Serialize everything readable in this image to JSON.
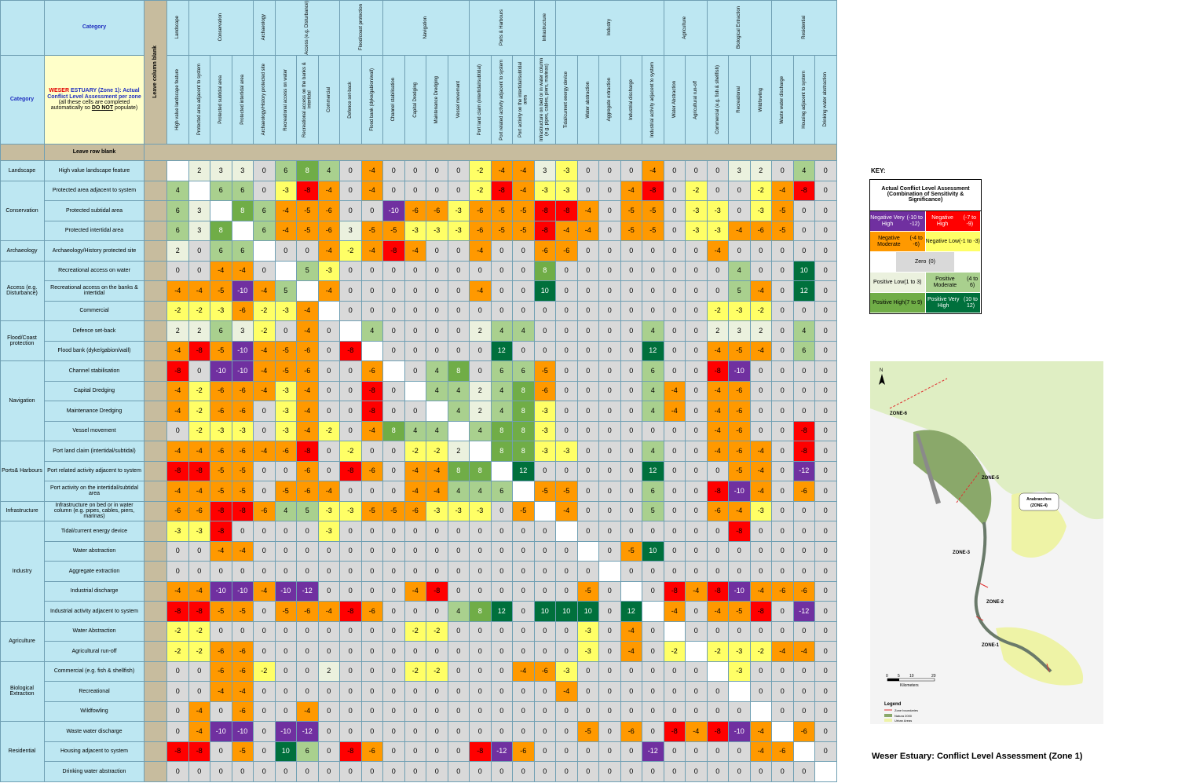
{
  "header": {
    "category_top": "Category",
    "category_side": "Category",
    "leave_column_blank": "Leave column blank",
    "leave_row_blank": "Leave row blank",
    "note_estuary_red": "WESER",
    "note_title_rest": " ESTUARY (Zone 1): Actual Conflict Level Assessment per zone",
    "note_line2": "(all these cells are completed automatically so ",
    "note_do_not": "DO NOT",
    "note_line2_end": " populate)"
  },
  "column_groups": [
    {
      "name": "Landscape",
      "span": 1
    },
    {
      "name": "Conservation",
      "span": 3
    },
    {
      "name": "Archaeology",
      "span": 1
    },
    {
      "name": "Access (e.g. Disturbance)",
      "span": 3
    },
    {
      "name": "Flood/coast protection",
      "span": 2
    },
    {
      "name": "Navigation",
      "span": 4
    },
    {
      "name": "Ports & Harbours",
      "span": 3
    },
    {
      "name": "Infrastructure",
      "span": 1
    },
    {
      "name": "Industry",
      "span": 5
    },
    {
      "name": "Agriculture",
      "span": 2
    },
    {
      "name": "Biological Extraction",
      "span": 3
    },
    {
      "name": "Residential",
      "span": 3
    }
  ],
  "activities": [
    "High value landscape feature",
    "Protected area adjacent to system",
    "Protected subtidal area",
    "Protected intertidal area",
    "Archaeology/History protected site",
    "Recreational access on water",
    "Recreational access on the banks & intertidal",
    "Commercial",
    "Defence set-back",
    "Flood bank (dyke/gabion/wall)",
    "Channel stabilisation",
    "Capital Dredging",
    "Maintenance Dredging",
    "Vessel movement",
    "Port land claim (intertidal/subtidal)",
    "Port related activity adjacent to system",
    "Port activity on the intertidal/subtidal area",
    "Infrastructure on bed or in water column (e.g. pipes, cables, piers, marinas)",
    "Tidal/current energy device",
    "Water abstraction",
    "Aggregate extraction",
    "Industrial discharge",
    "Industrial activity adjacent to system",
    "Water Abstraction",
    "Agricultural run-off",
    "Commercial (e.g. fish & shellfish)",
    "Recreational",
    "Wildfowling",
    "Waste water discharge",
    "Housing adjacent to system",
    "Drinking water abstraction"
  ],
  "row_groups": [
    {
      "name": "Landscape",
      "span": 1
    },
    {
      "name": "Conservation",
      "span": 3
    },
    {
      "name": "Archaeology",
      "span": 1
    },
    {
      "name": "Access (e.g. Disturbance)",
      "span": 3
    },
    {
      "name": "Flood/Coast protection",
      "span": 2
    },
    {
      "name": "Navigation",
      "span": 4
    },
    {
      "name": "Ports& Harbours",
      "span": 3
    },
    {
      "name": "Infrastructure",
      "span": 1
    },
    {
      "name": "Industry",
      "span": 5
    },
    {
      "name": "Agriculture",
      "span": 2
    },
    {
      "name": "Biological Extraction",
      "span": 3
    },
    {
      "name": "Residential",
      "span": 3
    }
  ],
  "chart_data": {
    "type": "heatmap",
    "title": "Weser Estuary:  Conflict Level Assessment (Zone 1)",
    "rows": [
      [
        null,
        2,
        3,
        3,
        0,
        6,
        8,
        4,
        0,
        -4,
        0,
        0,
        0,
        0,
        -2,
        -4,
        -4,
        3,
        -3,
        0,
        0,
        0,
        -4,
        0,
        0,
        0,
        3,
        2,
        0,
        4,
        0
      ],
      [
        4,
        null,
        6,
        6,
        0,
        -3,
        -8,
        -4,
        0,
        -4,
        0,
        0,
        0,
        0,
        -2,
        -8,
        -4,
        -3,
        -3,
        0,
        0,
        -4,
        -8,
        0,
        -2,
        0,
        0,
        -2,
        -4,
        -8,
        0
      ],
      [
        6,
        3,
        null,
        8,
        6,
        -4,
        -5,
        -6,
        0,
        0,
        -10,
        -6,
        -6,
        -3,
        -6,
        -5,
        -5,
        -8,
        -8,
        -4,
        0,
        -5,
        -5,
        0,
        -3,
        -3,
        0,
        -3,
        -5,
        0,
        0
      ],
      [
        6,
        3,
        8,
        null,
        6,
        -4,
        -5,
        -6,
        3,
        -5,
        -5,
        -3,
        -3,
        -3,
        -6,
        -5,
        -5,
        -8,
        -4,
        -4,
        0,
        -5,
        -5,
        0,
        -3,
        -3,
        -4,
        -6,
        -5,
        0,
        0
      ],
      [
        2,
        0,
        6,
        6,
        null,
        0,
        0,
        -4,
        -2,
        -4,
        -8,
        -4,
        0,
        0,
        -4,
        0,
        0,
        -6,
        -6,
        0,
        0,
        0,
        0,
        0,
        0,
        -4,
        0,
        0,
        0,
        0,
        0
      ],
      [
        0,
        0,
        -4,
        -4,
        0,
        null,
        5,
        -3,
        0,
        0,
        0,
        0,
        0,
        0,
        0,
        0,
        0,
        8,
        0,
        0,
        0,
        0,
        0,
        0,
        0,
        0,
        4,
        0,
        0,
        10,
        0
      ],
      [
        -4,
        -4,
        -5,
        -10,
        -4,
        5,
        null,
        -4,
        0,
        0,
        0,
        0,
        0,
        0,
        -4,
        0,
        0,
        10,
        0,
        0,
        0,
        0,
        0,
        0,
        0,
        0,
        5,
        -4,
        0,
        12,
        0
      ],
      [
        -2,
        -2,
        -3,
        -6,
        -2,
        -3,
        -4,
        null,
        0,
        0,
        0,
        0,
        0,
        0,
        0,
        0,
        0,
        0,
        0,
        0,
        0,
        0,
        0,
        0,
        0,
        -2,
        -3,
        -2,
        0,
        0,
        0
      ],
      [
        2,
        2,
        6,
        3,
        -2,
        0,
        -4,
        0,
        null,
        4,
        0,
        0,
        0,
        0,
        2,
        4,
        4,
        0,
        0,
        0,
        0,
        0,
        4,
        0,
        0,
        2,
        3,
        2,
        0,
        4,
        0
      ],
      [
        -4,
        -8,
        -5,
        -10,
        -4,
        -5,
        -6,
        0,
        -8,
        null,
        0,
        0,
        0,
        0,
        0,
        12,
        0,
        0,
        0,
        0,
        0,
        0,
        12,
        0,
        0,
        -4,
        -5,
        -4,
        0,
        6,
        0
      ],
      [
        -8,
        0,
        -10,
        -10,
        -4,
        -5,
        -6,
        0,
        0,
        -6,
        null,
        0,
        4,
        8,
        0,
        6,
        6,
        -5,
        0,
        0,
        0,
        0,
        6,
        0,
        0,
        -8,
        -10,
        0,
        0,
        0,
        0
      ],
      [
        -4,
        -2,
        -6,
        -6,
        -4,
        -3,
        -4,
        0,
        0,
        -8,
        0,
        null,
        4,
        4,
        2,
        4,
        8,
        -6,
        0,
        0,
        0,
        0,
        4,
        -4,
        0,
        -4,
        -6,
        0,
        0,
        0,
        0
      ],
      [
        -4,
        -2,
        -6,
        -6,
        0,
        -3,
        -4,
        0,
        0,
        -8,
        0,
        0,
        null,
        4,
        2,
        4,
        8,
        -3,
        0,
        0,
        0,
        0,
        4,
        -4,
        0,
        -4,
        -6,
        0,
        0,
        0,
        0
      ],
      [
        0,
        -2,
        -3,
        -3,
        0,
        -3,
        -4,
        -2,
        0,
        -4,
        8,
        4,
        4,
        null,
        4,
        8,
        8,
        -3,
        0,
        0,
        0,
        0,
        0,
        0,
        0,
        -4,
        -6,
        0,
        0,
        -8,
        0
      ],
      [
        -4,
        -4,
        -6,
        -6,
        -4,
        -6,
        -8,
        0,
        -2,
        0,
        0,
        -2,
        -2,
        2,
        null,
        8,
        8,
        -3,
        -3,
        0,
        0,
        0,
        4,
        0,
        0,
        -4,
        -6,
        -4,
        0,
        -8,
        0
      ],
      [
        -8,
        -8,
        -5,
        -5,
        0,
        0,
        -6,
        0,
        -8,
        -6,
        0,
        -4,
        -4,
        8,
        8,
        null,
        12,
        0,
        0,
        0,
        0,
        0,
        12,
        0,
        0,
        0,
        -5,
        -4,
        0,
        -12,
        0
      ],
      [
        -4,
        -4,
        -5,
        -5,
        0,
        -5,
        -6,
        -4,
        0,
        0,
        0,
        -4,
        -4,
        4,
        4,
        6,
        null,
        -5,
        -5,
        0,
        0,
        0,
        6,
        0,
        0,
        -8,
        -10,
        -4,
        0,
        -6,
        0
      ],
      [
        -6,
        -6,
        -8,
        -8,
        -6,
        4,
        5,
        -3,
        -3,
        -5,
        -5,
        -6,
        -3,
        -3,
        -3,
        0,
        -5,
        null,
        -4,
        0,
        0,
        0,
        5,
        0,
        0,
        -6,
        -4,
        -3,
        0,
        0,
        0
      ],
      [
        -3,
        -3,
        -8,
        0,
        0,
        0,
        0,
        -3,
        0,
        0,
        0,
        0,
        0,
        0,
        0,
        0,
        0,
        0,
        null,
        0,
        0,
        0,
        0,
        0,
        0,
        0,
        -8,
        0,
        0,
        0,
        0
      ],
      [
        0,
        0,
        -4,
        -4,
        0,
        0,
        0,
        0,
        0,
        0,
        0,
        0,
        0,
        0,
        0,
        0,
        0,
        0,
        0,
        null,
        0,
        -5,
        10,
        0,
        0,
        0,
        0,
        0,
        0,
        0,
        0
      ],
      [
        0,
        0,
        0,
        0,
        0,
        0,
        0,
        0,
        0,
        0,
        0,
        0,
        0,
        0,
        0,
        0,
        0,
        0,
        0,
        0,
        null,
        0,
        0,
        0,
        0,
        0,
        0,
        0,
        0,
        0,
        0
      ],
      [
        -4,
        -4,
        -10,
        -10,
        -4,
        -10,
        -12,
        0,
        0,
        0,
        0,
        -4,
        -8,
        0,
        0,
        0,
        0,
        0,
        0,
        -5,
        0,
        null,
        0,
        -8,
        -4,
        -8,
        -10,
        -4,
        -6,
        -6,
        0
      ],
      [
        -8,
        -8,
        -5,
        -5,
        0,
        -5,
        -6,
        -4,
        -8,
        -6,
        0,
        0,
        0,
        4,
        8,
        12,
        0,
        10,
        10,
        10,
        0,
        12,
        null,
        -4,
        0,
        -4,
        -5,
        -8,
        0,
        -12,
        0
      ],
      [
        -2,
        -2,
        0,
        0,
        0,
        0,
        0,
        0,
        0,
        0,
        0,
        -2,
        -2,
        0,
        0,
        0,
        0,
        0,
        0,
        -3,
        0,
        -4,
        0,
        null,
        0,
        0,
        0,
        0,
        0,
        0,
        0
      ],
      [
        -2,
        -2,
        -6,
        -6,
        0,
        0,
        0,
        0,
        0,
        0,
        0,
        0,
        0,
        0,
        0,
        0,
        0,
        0,
        0,
        -3,
        0,
        -4,
        0,
        -2,
        null,
        -2,
        -3,
        -2,
        -4,
        -4,
        0
      ],
      [
        0,
        0,
        -6,
        -6,
        -2,
        0,
        0,
        2,
        0,
        0,
        0,
        -2,
        -2,
        0,
        0,
        0,
        -4,
        -6,
        -3,
        0,
        0,
        0,
        0,
        0,
        0,
        null,
        -3,
        0,
        0,
        0,
        0
      ],
      [
        0,
        0,
        -4,
        -4,
        0,
        0,
        0,
        0,
        0,
        0,
        0,
        0,
        0,
        0,
        0,
        0,
        0,
        0,
        -4,
        0,
        0,
        0,
        0,
        0,
        0,
        0,
        null,
        0,
        0,
        0,
        0
      ],
      [
        0,
        -4,
        0,
        -6,
        0,
        0,
        -4,
        0,
        0,
        0,
        0,
        0,
        0,
        0,
        0,
        0,
        0,
        0,
        0,
        0,
        0,
        0,
        0,
        0,
        0,
        0,
        0,
        null,
        0,
        0,
        0
      ],
      [
        0,
        -4,
        -10,
        -10,
        0,
        -10,
        -12,
        0,
        0,
        0,
        0,
        0,
        0,
        0,
        0,
        0,
        0,
        0,
        0,
        -5,
        0,
        -6,
        0,
        -8,
        -4,
        -8,
        -10,
        -4,
        null,
        -6,
        0
      ],
      [
        -8,
        -8,
        0,
        -5,
        0,
        10,
        6,
        0,
        -8,
        -6,
        0,
        0,
        0,
        0,
        -8,
        -12,
        -6,
        0,
        0,
        0,
        0,
        0,
        -12,
        0,
        0,
        0,
        0,
        -4,
        -6,
        null,
        0
      ],
      [
        0,
        0,
        0,
        0,
        0,
        0,
        0,
        0,
        0,
        0,
        0,
        0,
        0,
        0,
        0,
        0,
        0,
        0,
        0,
        0,
        0,
        0,
        0,
        0,
        0,
        0,
        0,
        0,
        0,
        0,
        null
      ]
    ],
    "key": {
      "label": "KEY:",
      "title": "Actual Conflict Level Assessment (Combination of Sensitivity & Significance)",
      "items": [
        {
          "label": "Negative Very High",
          "range": "(-10 to -12)",
          "color": "#7030a0"
        },
        {
          "label": "Negative High",
          "range": "(-7 to -9)",
          "color": "#ff0000"
        },
        {
          "label": "Negative Moderate",
          "range": "(-4 to -6)",
          "color": "#ff9900"
        },
        {
          "label": "Negative Low",
          "range": "(-1 to -3)",
          "color": "#ffff66"
        },
        {
          "label": "Zero",
          "range": "(0)",
          "color": "#d9d9d9"
        },
        {
          "label": "Positive Low",
          "range": "(1 to 3)",
          "color": "#ebf1de"
        },
        {
          "label": "Positive Moderate",
          "range": "(4 to 6)",
          "color": "#a9d08e"
        },
        {
          "label": "Positive High",
          "range": "(7 to 9)",
          "color": "#70ad47"
        },
        {
          "label": "Positive Very High",
          "range": "(10 to 12)",
          "color": "#00703c"
        }
      ]
    }
  },
  "map": {
    "north": "N",
    "zones": [
      "ZONE-6",
      "ZONE-5",
      "ZONE-4",
      "ZONE-3",
      "ZONE-2",
      "ZONE-1"
    ],
    "anabranches": "Anabranches",
    "anabranches_zone": "(ZONE-4)",
    "scale_ticks": [
      "0",
      "5",
      "10",
      "20"
    ],
    "scale_unit": "Kilometers",
    "legend_title": "Legend",
    "legend_items": [
      "Zone boundaries",
      "Natura 2000",
      "Urban Areas"
    ]
  },
  "caption": "Weser Estuary:  Conflict Level Assessment (Zone 1)"
}
